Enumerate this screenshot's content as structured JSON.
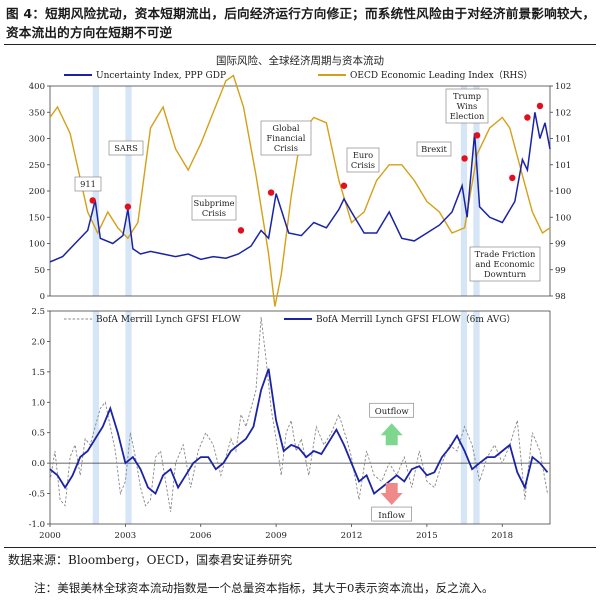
{
  "caption": "图 4：短期风险扰动，资本短期流出，后向经济运行方向修正；而系统性风险由于对经济前景影响较大，资本流出的方向在短期不可逆",
  "source": "数据来源：Bloomberg，OECD，国泰君安证券研究",
  "note": "注：美银美林全球资本流动指数是一个总量资本指标，其大于0表示资本流出，反之流入。",
  "colors": {
    "navy": "#1a23a6",
    "gold": "#d4a017",
    "gray": "#888888",
    "marker": "#e0101e",
    "band": "#d6e6f7",
    "up": "#7fd68e",
    "down": "#f08a8a"
  },
  "chart_data": [
    {
      "type": "line",
      "title": "国际风险、全球经济周期与资本流动",
      "x_range": [
        2000,
        2019.9
      ],
      "ylim": [
        0,
        400
      ],
      "y2lim": [
        98,
        102
      ],
      "y2_ticks": [
        "98",
        "99",
        "99",
        "100",
        "100",
        "101",
        "101",
        "102",
        "102"
      ],
      "series": [
        {
          "name": "Uncertainty Index, PPP GDP",
          "axis": "left",
          "x": [
            2000,
            2000.5,
            2001,
            2001.5,
            2001.8,
            2002,
            2002.5,
            2002.9,
            2003.1,
            2003.3,
            2003.6,
            2004,
            2004.5,
            2005,
            2005.5,
            2006,
            2006.5,
            2007,
            2007.5,
            2008,
            2008.4,
            2008.7,
            2009,
            2009.5,
            2010,
            2010.5,
            2011,
            2011.5,
            2011.7,
            2012,
            2012.5,
            2013,
            2013.5,
            2014,
            2014.5,
            2015,
            2015.5,
            2016,
            2016.4,
            2016.6,
            2016.9,
            2017.1,
            2017.5,
            2018,
            2018.5,
            2018.8,
            2019,
            2019.3,
            2019.5,
            2019.7,
            2019.9
          ],
          "y": [
            65,
            75,
            100,
            125,
            182,
            110,
            100,
            115,
            165,
            90,
            80,
            85,
            80,
            75,
            80,
            70,
            75,
            72,
            80,
            95,
            125,
            110,
            195,
            120,
            115,
            140,
            130,
            165,
            185,
            160,
            120,
            120,
            160,
            110,
            105,
            120,
            135,
            160,
            210,
            150,
            310,
            170,
            150,
            140,
            180,
            260,
            240,
            350,
            300,
            330,
            280
          ]
        },
        {
          "name": "OECD Economic Leading Index（RHS）",
          "axis": "right",
          "x": [
            2000,
            2000.3,
            2000.8,
            2001.5,
            2001.9,
            2002.3,
            2002.7,
            2003.1,
            2003.5,
            2004,
            2004.5,
            2005,
            2005.5,
            2006,
            2006.5,
            2007,
            2007.3,
            2007.7,
            2008.2,
            2008.7,
            2008.95,
            2009.2,
            2009.6,
            2010,
            2010.5,
            2011,
            2011.5,
            2012,
            2012.5,
            2013,
            2013.5,
            2014,
            2014.5,
            2015,
            2015.5,
            2016,
            2016.5,
            2017,
            2017.5,
            2018,
            2018.3,
            2018.8,
            2019.2,
            2019.6,
            2019.9
          ],
          "y": [
            101.4,
            101.6,
            101.1,
            99.6,
            99.2,
            99.6,
            99.3,
            99.1,
            99.4,
            101.2,
            101.6,
            100.8,
            100.4,
            100.9,
            101.5,
            102.1,
            102.2,
            101.6,
            100.3,
            98.8,
            97.8,
            98.4,
            99.9,
            101.1,
            101.4,
            101.3,
            100.2,
            99.4,
            99.6,
            100.2,
            100.5,
            100.5,
            100.2,
            99.8,
            99.6,
            99.2,
            99.3,
            100.7,
            101.2,
            101.4,
            101.2,
            100.3,
            99.6,
            99.2,
            99.3
          ]
        }
      ],
      "events": [
        {
          "label": "911",
          "x": 2001.7,
          "y": 182
        },
        {
          "label": "SARS",
          "x": 2003.1,
          "y": 170
        },
        {
          "label": "Subprime Crisis",
          "x": 2007.6,
          "y": 125
        },
        {
          "label": "Global Financial Crisis",
          "x": 2008.8,
          "y": 197
        },
        {
          "label": "Euro Crisis",
          "x": 2011.7,
          "y": 210
        },
        {
          "label": "Brexit",
          "x": 2016.5,
          "y": 262
        },
        {
          "label": "Trump Wins Election",
          "x": 2017.0,
          "y": 306
        },
        {
          "label": "Trade Friction and Economic Downturn",
          "x": 2018.4,
          "y": 225
        },
        {
          "label": "",
          "x": 2019.0,
          "y": 340
        },
        {
          "label": "",
          "x": 2019.5,
          "y": 362
        }
      ],
      "bands": [
        [
          2001.7,
          2001.95
        ],
        [
          2003.0,
          2003.25
        ],
        [
          2016.35,
          2016.6
        ],
        [
          2016.85,
          2017.1
        ]
      ],
      "y_ticks": [
        0,
        50,
        100,
        150,
        200,
        250,
        300,
        350,
        400
      ]
    },
    {
      "type": "line",
      "x_range": [
        2000,
        2019.9
      ],
      "ylim": [
        -1.0,
        2.5
      ],
      "x_ticks": [
        2000,
        2003,
        2006,
        2009,
        2012,
        2015,
        2018
      ],
      "y_ticks": [
        -1.0,
        -0.5,
        0.0,
        0.5,
        1.0,
        1.5,
        2.0,
        2.5
      ],
      "series": [
        {
          "name": "BofA Merrill Lynch GFSI FLOW",
          "style": "dashed",
          "x": [
            2000,
            2000.2,
            2000.4,
            2000.6,
            2000.8,
            2001,
            2001.2,
            2001.4,
            2001.6,
            2001.8,
            2002,
            2002.2,
            2002.4,
            2002.6,
            2002.8,
            2003,
            2003.2,
            2003.4,
            2003.6,
            2003.8,
            2004,
            2004.2,
            2004.4,
            2004.6,
            2004.8,
            2005,
            2005.3,
            2005.6,
            2005.9,
            2006.2,
            2006.5,
            2006.8,
            2007,
            2007.2,
            2007.4,
            2007.6,
            2007.8,
            2008,
            2008.2,
            2008.4,
            2008.6,
            2008.8,
            2009,
            2009.2,
            2009.4,
            2009.6,
            2009.8,
            2010,
            2010.3,
            2010.6,
            2010.9,
            2011.2,
            2011.5,
            2011.8,
            2012,
            2012.3,
            2012.6,
            2012.9,
            2013.2,
            2013.5,
            2013.8,
            2014.1,
            2014.4,
            2014.7,
            2015,
            2015.3,
            2015.6,
            2015.9,
            2016.2,
            2016.5,
            2016.8,
            2017.1,
            2017.4,
            2017.7,
            2018,
            2018.3,
            2018.6,
            2018.9,
            2019.2,
            2019.5,
            2019.8
          ],
          "y": [
            -0.3,
            0.2,
            -0.6,
            -0.7,
            0.1,
            0.3,
            -0.2,
            0.4,
            0.3,
            0.6,
            0.9,
            1.0,
            0.6,
            0.2,
            -0.5,
            -0.3,
            0.5,
            0.1,
            -0.4,
            -0.7,
            -0.6,
            0.1,
            0.2,
            -0.3,
            -0.8,
            0.0,
            0.3,
            -0.4,
            0.2,
            0.5,
            0.3,
            -0.2,
            0.1,
            0.4,
            0.2,
            0.8,
            0.6,
            0.9,
            1.2,
            2.4,
            1.7,
            0.9,
            0.4,
            -0.2,
            0.5,
            0.7,
            0.2,
            0.4,
            -0.2,
            0.6,
            0.3,
            0.5,
            0.8,
            0.4,
            0.1,
            -0.6,
            0.2,
            -0.2,
            -0.3,
            0.0,
            -0.2,
            0.1,
            -0.4,
            0.2,
            -0.3,
            -0.4,
            0.0,
            0.3,
            0.2,
            0.6,
            0.3,
            -0.3,
            0.1,
            0.3,
            0.0,
            0.3,
            0.7,
            -0.6,
            0.5,
            0.2,
            -0.5
          ]
        },
        {
          "name": "BofA Merrill Lynch GFSI FLOW（6m AVG）",
          "style": "solid",
          "x": [
            2000,
            2000.3,
            2000.6,
            2000.9,
            2001.2,
            2001.5,
            2001.8,
            2002.1,
            2002.4,
            2002.7,
            2003,
            2003.3,
            2003.6,
            2003.9,
            2004.2,
            2004.5,
            2004.8,
            2005.1,
            2005.4,
            2005.7,
            2006,
            2006.3,
            2006.6,
            2006.9,
            2007.2,
            2007.5,
            2007.8,
            2008.1,
            2008.4,
            2008.7,
            2009,
            2009.3,
            2009.6,
            2009.9,
            2010.2,
            2010.5,
            2010.8,
            2011.1,
            2011.4,
            2011.7,
            2012,
            2012.3,
            2012.6,
            2012.9,
            2013.2,
            2013.5,
            2013.8,
            2014.1,
            2014.4,
            2014.7,
            2015,
            2015.3,
            2015.6,
            2015.9,
            2016.2,
            2016.5,
            2016.8,
            2017.1,
            2017.4,
            2017.7,
            2018,
            2018.3,
            2018.6,
            2018.9,
            2019.2,
            2019.5,
            2019.8
          ],
          "y": [
            -0.1,
            -0.2,
            -0.4,
            -0.2,
            0.1,
            0.2,
            0.4,
            0.6,
            0.9,
            0.5,
            0.0,
            0.1,
            -0.1,
            -0.4,
            -0.5,
            -0.2,
            -0.1,
            -0.4,
            -0.2,
            0.0,
            0.1,
            0.1,
            -0.1,
            0.0,
            0.2,
            0.3,
            0.4,
            0.6,
            1.2,
            1.55,
            0.7,
            0.2,
            0.3,
            0.25,
            0.1,
            0.2,
            0.15,
            0.35,
            0.55,
            0.3,
            0.0,
            -0.3,
            -0.2,
            -0.5,
            -0.4,
            -0.3,
            -0.2,
            -0.3,
            -0.1,
            -0.05,
            -0.2,
            -0.15,
            0.1,
            0.25,
            0.45,
            0.2,
            -0.1,
            0.0,
            0.1,
            0.1,
            0.2,
            0.3,
            -0.15,
            -0.4,
            0.1,
            0.0,
            -0.15
          ]
        }
      ],
      "bands": [
        [
          2001.7,
          2001.95
        ],
        [
          2003.0,
          2003.25
        ],
        [
          2016.35,
          2016.6
        ],
        [
          2016.85,
          2017.1
        ]
      ],
      "annotations": [
        {
          "label": "Outflow",
          "x": 2013.6,
          "y": 0.82
        },
        {
          "label": "Inflow",
          "x": 2013.6,
          "y": -0.82
        }
      ]
    }
  ]
}
